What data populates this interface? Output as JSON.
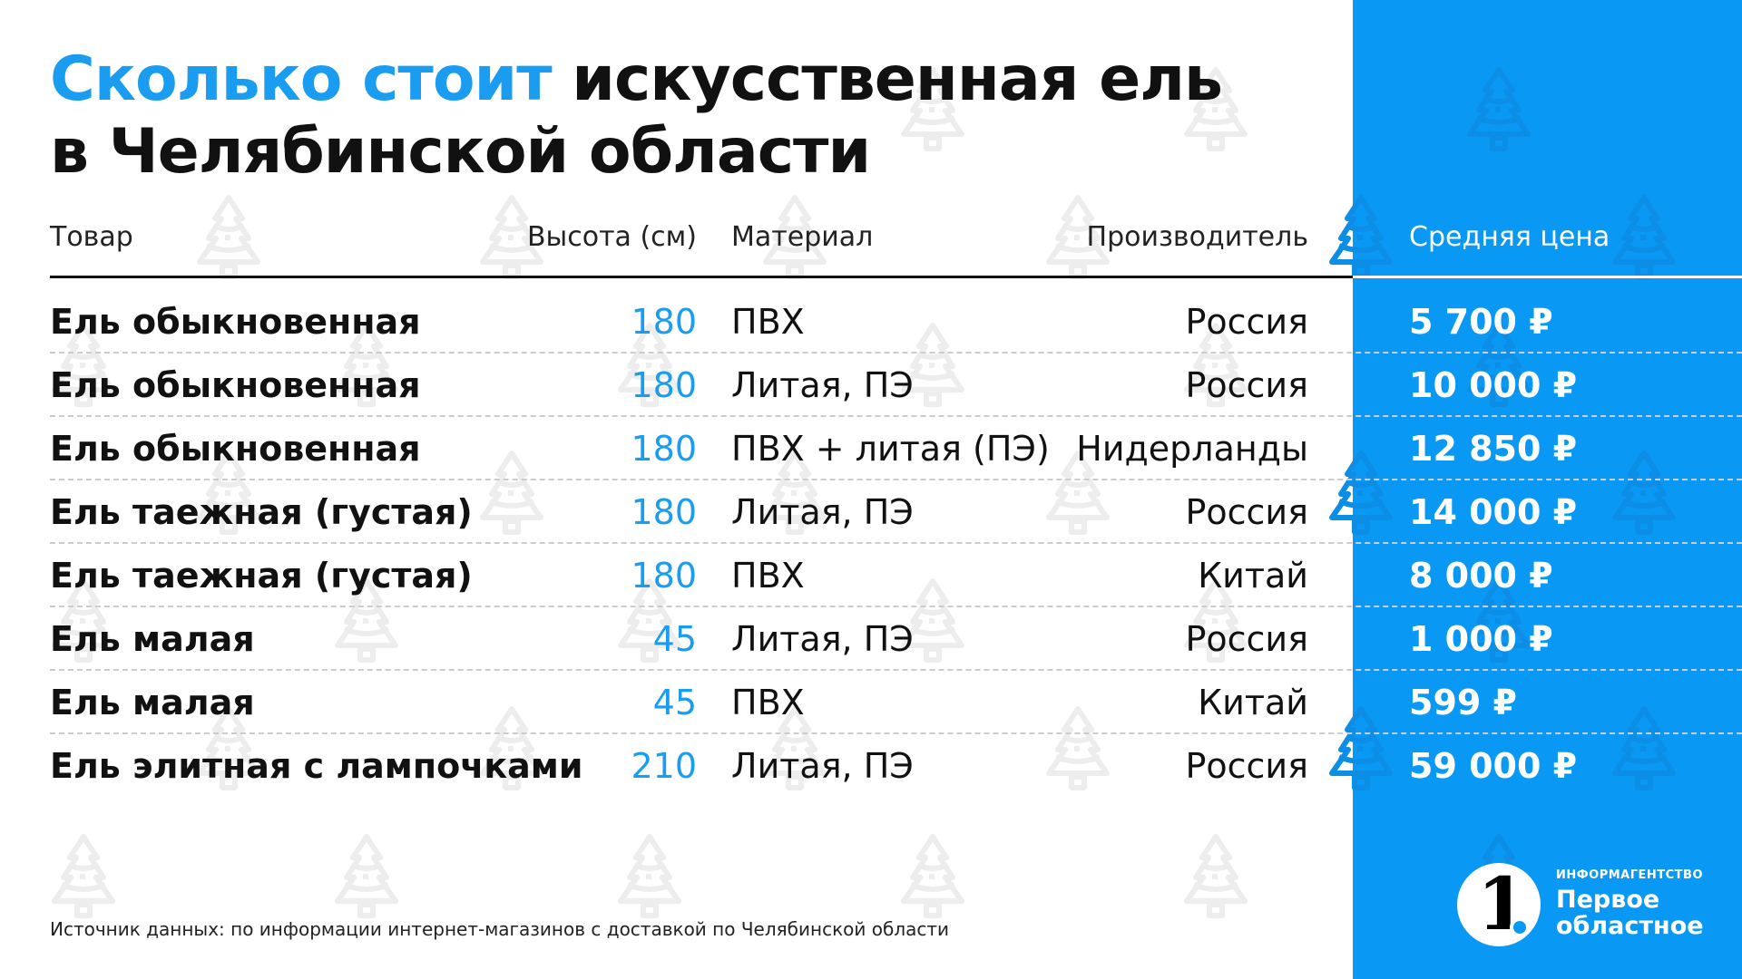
{
  "title": {
    "accent": "Сколько стоит",
    "rest_line1": " искусственная ель",
    "line2": "в Челябинской области"
  },
  "headers": {
    "product": "Товар",
    "height": "Высота (см)",
    "material": "Материал",
    "manufacturer": "Производитель",
    "price": "Средняя цена"
  },
  "rows": [
    {
      "product": "Ель обыкновенная",
      "height": "180",
      "material": "ПВХ",
      "manufacturer": "Россия",
      "price": "5 700 ₽"
    },
    {
      "product": "Ель обыкновенная",
      "height": "180",
      "material": "Литая, ПЭ",
      "manufacturer": "Россия",
      "price": "10 000 ₽"
    },
    {
      "product": "Ель обыкновенная",
      "height": "180",
      "material": "ПВХ + литая (ПЭ)",
      "manufacturer": "Нидерланды",
      "price": "12 850 ₽"
    },
    {
      "product": "Ель таежная (густая)",
      "height": "180",
      "material": "Литая, ПЭ",
      "manufacturer": "Россия",
      "price": "14 000 ₽"
    },
    {
      "product": "Ель таежная (густая)",
      "height": "180",
      "material": "ПВХ",
      "manufacturer": "Китай",
      "price": "8 000 ₽"
    },
    {
      "product": "Ель малая",
      "height": "45",
      "material": "Литая, ПЭ",
      "manufacturer": "Россия",
      "price": "1 000 ₽"
    },
    {
      "product": "Ель малая",
      "height": "45",
      "material": "ПВХ",
      "manufacturer": "Китай",
      "price": "599 ₽"
    },
    {
      "product": "Ель элитная с лампочками",
      "height": "210",
      "material": "Литая, ПЭ",
      "manufacturer": "Россия",
      "price": "59 000 ₽"
    }
  ],
  "source": "Источник данных: по информации интернет-магазинов с доставкой по Челябинской области",
  "logo": {
    "mark": "1",
    "agency": "ИНФОРМАГЕНТСТВО",
    "name_line1": "Первое",
    "name_line2": "областное"
  },
  "colors": {
    "accent": "#1a9cf0",
    "panel": "#0a98f5"
  }
}
